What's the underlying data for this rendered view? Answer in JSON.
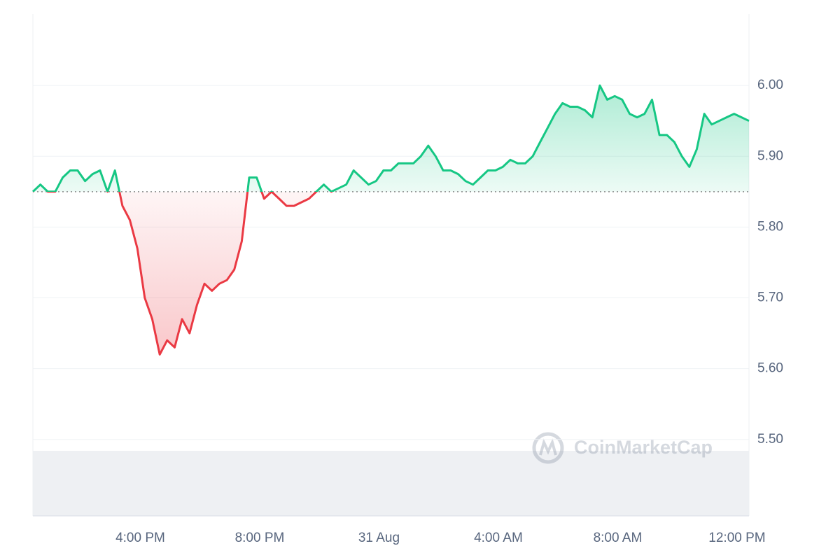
{
  "chart_data": {
    "type": "line",
    "watermark": "CoinMarketCap",
    "values": [
      5.85,
      5.86,
      5.85,
      5.85,
      5.87,
      5.88,
      5.88,
      5.865,
      5.875,
      5.88,
      5.85,
      5.88,
      5.83,
      5.81,
      5.77,
      5.7,
      5.67,
      5.62,
      5.64,
      5.63,
      5.67,
      5.65,
      5.69,
      5.72,
      5.71,
      5.72,
      5.725,
      5.74,
      5.78,
      5.87,
      5.87,
      5.84,
      5.85,
      5.84,
      5.83,
      5.83,
      5.835,
      5.84,
      5.85,
      5.86,
      5.85,
      5.855,
      5.86,
      5.88,
      5.87,
      5.86,
      5.865,
      5.88,
      5.88,
      5.89,
      5.89,
      5.89,
      5.9,
      5.915,
      5.9,
      5.88,
      5.88,
      5.875,
      5.865,
      5.86,
      5.87,
      5.88,
      5.88,
      5.885,
      5.895,
      5.89,
      5.89,
      5.9,
      5.92,
      5.94,
      5.96,
      5.975,
      5.97,
      5.97,
      5.965,
      5.955,
      6.0,
      5.98,
      5.985,
      5.98,
      5.96,
      5.955,
      5.96,
      5.98,
      5.93,
      5.93,
      5.92,
      5.9,
      5.885,
      5.91,
      5.96,
      5.945,
      5.95,
      5.955,
      5.96,
      5.955,
      5.95
    ],
    "baseline": 5.85,
    "up_color": "#16c784",
    "down_color": "#ea3943",
    "xlim": [
      0,
      96
    ],
    "xticks": [
      {
        "value": 14.4,
        "label": "4:00 PM"
      },
      {
        "value": 30.4,
        "label": "8:00 PM"
      },
      {
        "value": 46.4,
        "label": "31 Aug"
      },
      {
        "value": 62.4,
        "label": "4:00 AM"
      },
      {
        "value": 78.4,
        "label": "8:00 AM"
      },
      {
        "value": 94.4,
        "label": "12:00 PM"
      }
    ],
    "ylim": [
      5.392,
      6.101
    ],
    "yticks": [
      {
        "value": 5.5,
        "label": "5.50"
      },
      {
        "value": 5.6,
        "label": "5.60"
      },
      {
        "value": 5.7,
        "label": "5.70"
      },
      {
        "value": 5.8,
        "label": "5.80"
      },
      {
        "value": 5.9,
        "label": "5.90"
      },
      {
        "value": 6.0,
        "label": "6.00"
      }
    ],
    "grid": true
  }
}
